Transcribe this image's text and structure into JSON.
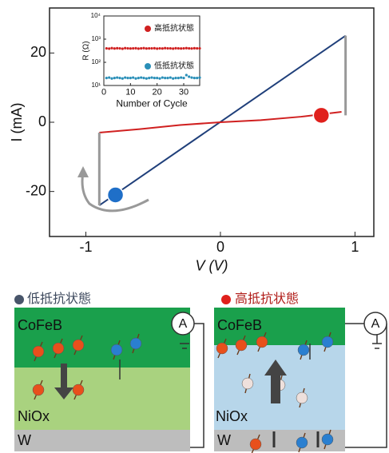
{
  "chart_data": [
    {
      "type": "line",
      "xlabel": "V (V)",
      "ylabel": "I (mA)",
      "xlim": [
        -1.27,
        1.14
      ],
      "ylim": [
        -33,
        33
      ],
      "xticks": [
        -1,
        0,
        1
      ],
      "yticks": [
        -20,
        0,
        20
      ],
      "series": [
        {
          "color": "#1f3f7a",
          "x": [
            -0.9,
            0.93
          ],
          "values": [
            -24,
            25
          ]
        },
        {
          "color": "#d02020",
          "x": [
            -0.9,
            -0.6,
            -0.3,
            0,
            0.3,
            0.6,
            0.9
          ],
          "values": [
            -3,
            -2,
            -0.8,
            0,
            0.6,
            1.6,
            3
          ]
        },
        {
          "color": "#999999",
          "x": [
            0.93,
            0.93
          ],
          "values": [
            25,
            2
          ]
        },
        {
          "color": "#999999",
          "x": [
            -0.9,
            -0.9
          ],
          "values": [
            -3,
            -24
          ]
        }
      ],
      "markers": [
        {
          "color": "#e0201c",
          "x": 0.75,
          "y": 2
        },
        {
          "color": "#1f6fc8",
          "x": -0.78,
          "y": -21
        }
      ]
    },
    {
      "type": "scatter",
      "xlabel": "Number of Cycle",
      "ylabel": "R (Ω)",
      "log_y": true,
      "xlim": [
        0,
        36
      ],
      "ylim": [
        10,
        10000
      ],
      "xticks": [
        0,
        10,
        20,
        30
      ],
      "yticks": [
        {
          "value": 10,
          "label": "10¹"
        },
        {
          "value": 100,
          "label": "10²"
        },
        {
          "value": 1000,
          "label": "10³"
        },
        {
          "value": 10000,
          "label": "10⁴"
        }
      ],
      "x": [
        1,
        2,
        3,
        4,
        5,
        6,
        7,
        8,
        9,
        10,
        11,
        12,
        13,
        14,
        15,
        16,
        17,
        18,
        19,
        20,
        21,
        22,
        23,
        24,
        25,
        26,
        27,
        28,
        29,
        30,
        31,
        32,
        33,
        34,
        35,
        36
      ],
      "series": [
        {
          "name": "高抵抗状態",
          "color": "#d02020",
          "values": [
            400,
            390,
            410,
            395,
            405,
            400,
            385,
            410,
            400,
            395,
            400,
            405,
            390,
            400,
            410,
            395,
            400,
            400,
            405,
            390,
            400,
            395,
            410,
            400,
            400,
            390,
            405,
            400,
            395,
            400,
            410,
            400,
            395,
            405,
            400,
            400
          ]
        },
        {
          "name": "低抵抗状態",
          "color": "#2a8fb8",
          "values": [
            21,
            22,
            20,
            21,
            22,
            21,
            20,
            22,
            21,
            21,
            22,
            20,
            21,
            22,
            21,
            20,
            21,
            22,
            21,
            21,
            20,
            22,
            21,
            21,
            22,
            20,
            21,
            21,
            22,
            21,
            28,
            24,
            22,
            21,
            21,
            22
          ]
        }
      ]
    }
  ],
  "diagrams": [
    {
      "legend": "低抵抗状態",
      "layers": [
        "CoFeB",
        "NiOx",
        "W"
      ],
      "meter": "A"
    },
    {
      "legend": "高抵抗状態",
      "layers": [
        "CoFeB",
        "NiOx",
        "W"
      ],
      "meter": "A"
    }
  ]
}
